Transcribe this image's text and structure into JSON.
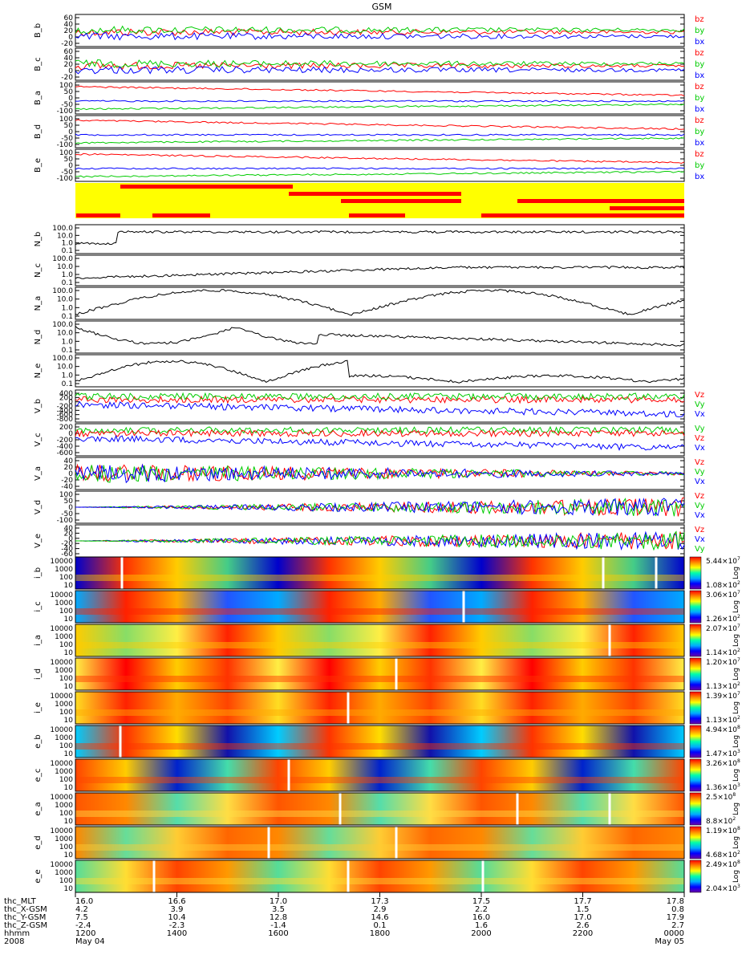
{
  "title": "GSM",
  "chart_data": [
    {
      "type": "line",
      "panels": [
        {
          "id": "B_b",
          "ylabel": "B_b",
          "ticks": [
            "60",
            "40",
            "20",
            "0",
            "-20"
          ],
          "legend": [
            "bz",
            "by",
            "bx"
          ]
        },
        {
          "id": "B_c",
          "ylabel": "B_c",
          "ticks": [
            "60",
            "40",
            "20",
            "0",
            "-20"
          ],
          "legend": [
            "bz",
            "by",
            "bx"
          ]
        },
        {
          "id": "B_a",
          "ylabel": "B_a",
          "ticks": [
            "100",
            "50",
            "0",
            "-50",
            "-100"
          ],
          "legend": [
            "bz",
            "by",
            "bx"
          ]
        },
        {
          "id": "B_d",
          "ylabel": "B_d",
          "ticks": [
            "100",
            "50",
            "0",
            "-50",
            "-100"
          ],
          "legend": [
            "bz",
            "by",
            "bx"
          ]
        },
        {
          "id": "B_e",
          "ylabel": "B_e",
          "ticks": [
            "100",
            "50",
            "0",
            "-50",
            "-100"
          ],
          "legend": [
            "bz",
            "by",
            "bx"
          ]
        }
      ]
    },
    {
      "type": "line",
      "panels": [
        {
          "id": "N_b",
          "ylabel": "N_b",
          "ticks": [
            "100.0",
            "10.0",
            "1.0",
            "0.1"
          ]
        },
        {
          "id": "N_c",
          "ylabel": "N_c",
          "ticks": [
            "100.0",
            "10.0",
            "1.0",
            "0.1"
          ]
        },
        {
          "id": "N_a",
          "ylabel": "N_a",
          "ticks": [
            "100.0",
            "10.0",
            "1.0",
            "0.1"
          ]
        },
        {
          "id": "N_d",
          "ylabel": "N_d",
          "ticks": [
            "100.0",
            "10.0",
            "1.0",
            "0.1"
          ]
        },
        {
          "id": "N_e",
          "ylabel": "N_e",
          "ticks": [
            "100.0",
            "10.0",
            "1.0",
            "0.1"
          ]
        }
      ]
    },
    {
      "type": "line",
      "panels": [
        {
          "id": "V_b",
          "ylabel": "V_b",
          "ticks": [
            "400",
            "200",
            "0",
            "-200",
            "-400",
            "-600",
            "-800"
          ],
          "legend": [
            "Vz",
            "Vy",
            "Vx"
          ]
        },
        {
          "id": "V_c",
          "ylabel": "V_c",
          "ticks": [
            "200",
            "0",
            "-200",
            "-400",
            "-600"
          ],
          "legend": [
            "Vy",
            "Vz",
            "Vx"
          ]
        },
        {
          "id": "V_a",
          "ylabel": "V_a",
          "ticks": [
            "40",
            "20",
            "0",
            "-20",
            "-40"
          ],
          "legend": [
            "Vz",
            "Vy",
            "Vx"
          ]
        },
        {
          "id": "V_d",
          "ylabel": "V_d",
          "ticks": [
            "100",
            "50",
            "0",
            "-50",
            "-100"
          ],
          "legend": [
            "Vz",
            "Vy",
            "Vx"
          ]
        },
        {
          "id": "V_e",
          "ylabel": "V_e",
          "ticks": [
            "40",
            "20",
            "0",
            "-20",
            "-40",
            "-60"
          ],
          "legend": [
            "Vz",
            "Vx",
            "Vy"
          ]
        }
      ]
    },
    {
      "type": "heatmap",
      "yticks": [
        "10000",
        "1000",
        "100",
        "10"
      ],
      "colorbar_label": "Log",
      "panels": [
        {
          "id": "i_b",
          "ylabel": "i_b"
        },
        {
          "id": "i_c",
          "ylabel": "i_c"
        },
        {
          "id": "i_a",
          "ylabel": "i_a"
        },
        {
          "id": "i_d",
          "ylabel": "i_d"
        },
        {
          "id": "i_e",
          "ylabel": "i_e"
        },
        {
          "id": "e_b",
          "ylabel": "e_b"
        },
        {
          "id": "e_c",
          "ylabel": "e_c"
        },
        {
          "id": "e_a",
          "ylabel": "e_a"
        },
        {
          "id": "e_d",
          "ylabel": "e_d"
        },
        {
          "id": "e_e",
          "ylabel": "e_e"
        }
      ],
      "colorbars": [
        {
          "max": "5.44×10",
          "max_exp": "7",
          "min": "1.08×10",
          "min_exp": "2"
        },
        {
          "max": "3.06×10",
          "max_exp": "7",
          "min": "1.26×10",
          "min_exp": "2"
        },
        {
          "max": "2.07×10",
          "max_exp": "7",
          "min": "1.14×10",
          "min_exp": "2"
        },
        {
          "max": "1.20×10",
          "max_exp": "7",
          "min": "1.13×10",
          "min_exp": "2"
        },
        {
          "max": "1.39×10",
          "max_exp": "7",
          "min": "1.13×10",
          "min_exp": "2"
        },
        {
          "max": "4.94×10",
          "max_exp": "8",
          "min": "1.47×10",
          "min_exp": "3"
        },
        {
          "max": "3.26×10",
          "max_exp": "8",
          "min": "1.36×10",
          "min_exp": "3"
        },
        {
          "max": "2.5×10",
          "max_exp": "8",
          "min": "8.8×10",
          "min_exp": "2"
        },
        {
          "max": "1.19×10",
          "max_exp": "8",
          "min": "4.68×10",
          "min_exp": "2"
        },
        {
          "max": "2.49×10",
          "max_exp": "8",
          "min": "2.04×10",
          "min_exp": "3"
        }
      ]
    }
  ],
  "time_axis": {
    "row_labels": [
      "thc_MLT",
      "thc_X-GSM",
      "thc_Y-GSM",
      "thc_Z-GSM",
      "hhmm",
      "2008"
    ],
    "columns": [
      [
        "16.0",
        "4.2",
        "7.5",
        "-2.4",
        "1200",
        "May 04"
      ],
      [
        "16.6",
        "3.9",
        "10.4",
        "-2.3",
        "1400",
        ""
      ],
      [
        "17.0",
        "3.5",
        "12.8",
        "-1.4",
        "1600",
        ""
      ],
      [
        "17.3",
        "2.9",
        "14.6",
        "0.1",
        "1800",
        ""
      ],
      [
        "17.5",
        "2.2",
        "16.0",
        "1.6",
        "2000",
        ""
      ],
      [
        "17.7",
        "1.5",
        "17.0",
        "2.6",
        "2200",
        ""
      ],
      [
        "17.8",
        "0.8",
        "17.9",
        "2.7",
        "0000",
        "May 05"
      ]
    ]
  },
  "colors": {
    "bz": "#ff0000",
    "by": "#00cc00",
    "bx": "#0000ff",
    "status_on": "#ff0000",
    "status_off": "#ffff00"
  }
}
